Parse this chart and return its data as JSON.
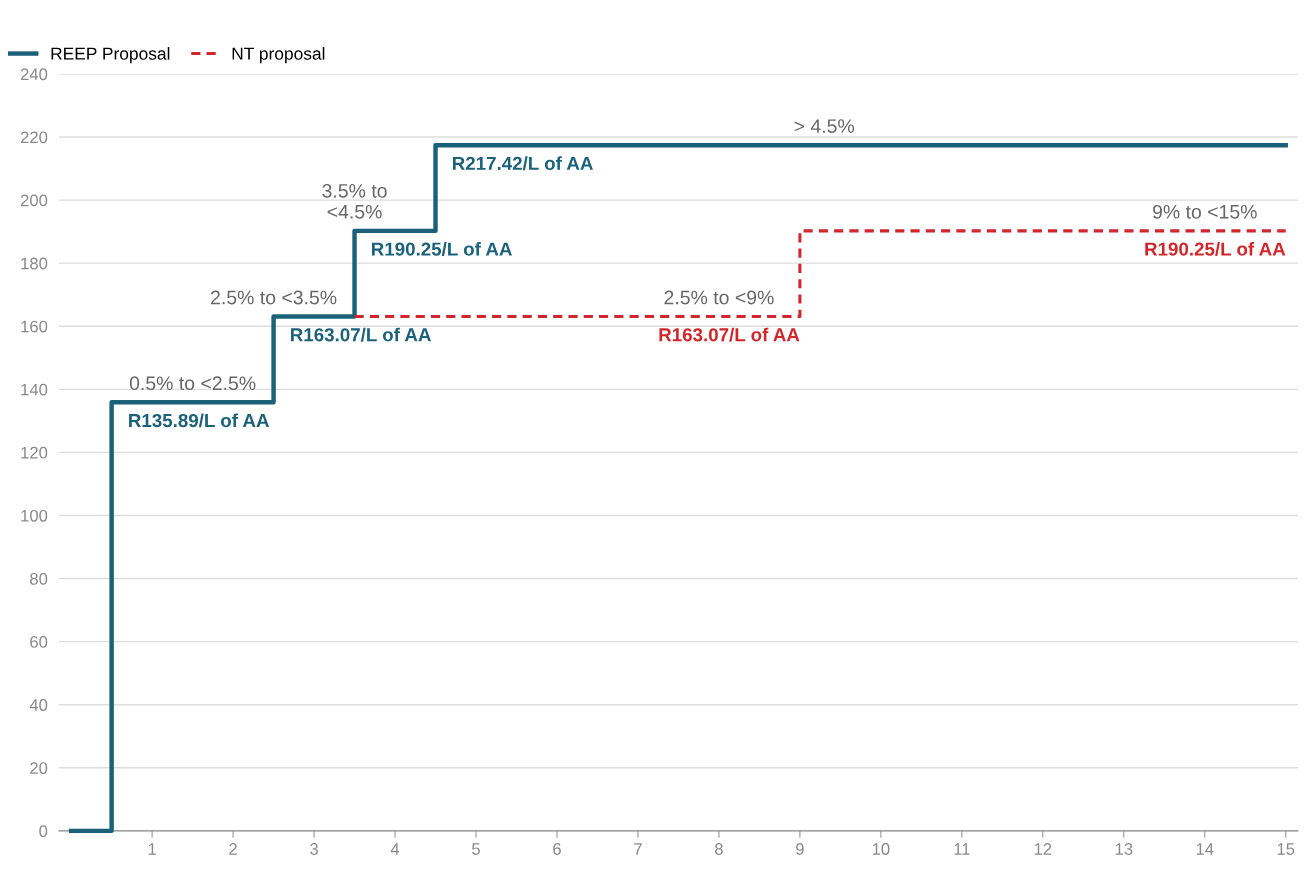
{
  "chart_data": {
    "type": "step",
    "series": [
      {
        "name": "REEP Proposal",
        "color": "#1b6179",
        "line_style": "solid",
        "x": [
          0,
          0.5,
          2.5,
          3.5,
          4.5,
          15
        ],
        "values": [
          0,
          135.89,
          163.07,
          190.25,
          217.42,
          217.42
        ],
        "value_labels": [
          null,
          "R135.89/L of AA",
          "R163.07/L of AA",
          "R190.25/L of AA",
          "R217.42/L of AA",
          null
        ]
      },
      {
        "name": "NT proposal",
        "color": "#d0262c",
        "line_style": "dashed",
        "x": [
          3.5,
          9,
          9,
          15
        ],
        "values": [
          163.07,
          163.07,
          190.25,
          190.25
        ],
        "value_labels": [
          null,
          "R163.07/L of AA",
          null,
          "R190.25/L of AA"
        ]
      }
    ],
    "annotations": [
      {
        "text": "0.5% to <2.5%",
        "x": 1.5,
        "y": 135.89
      },
      {
        "text": "2.5% to <3.5%",
        "x": 2.5,
        "y": 163.07
      },
      {
        "text": "3.5% to\n<4.5%",
        "x": 3.5,
        "y": 190.25
      },
      {
        "text": "> 4.5%",
        "x": 9.3,
        "y": 217.42
      },
      {
        "text": "2.5% to <9%",
        "x": 8.0,
        "y": 163.07
      },
      {
        "text": "9% to <15%",
        "x": 14.0,
        "y": 190.25
      }
    ],
    "xlim": [
      -0.15,
      15.15
    ],
    "xticks": [
      1,
      2,
      3,
      4,
      5,
      6,
      7,
      8,
      9,
      10,
      11,
      12,
      13,
      14,
      15
    ],
    "ylim": [
      0,
      240
    ],
    "yticks": [
      0,
      20,
      40,
      60,
      80,
      100,
      120,
      140,
      160,
      180,
      200,
      220,
      240
    ],
    "grid": "y",
    "legend": "top left"
  }
}
